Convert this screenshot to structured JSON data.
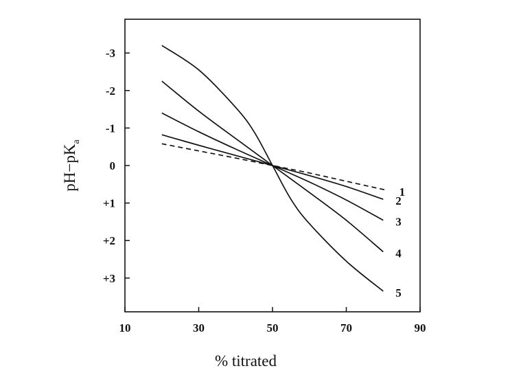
{
  "chart_data": {
    "type": "line",
    "title": "",
    "xlabel": "% titrated",
    "ylabel": "pH−pK",
    "ylabel_subscript": "a",
    "xlim": [
      10,
      90
    ],
    "ylim": [
      3.9,
      -3.9
    ],
    "y_axis_inverted": true,
    "grid": false,
    "x_ticks": [
      10,
      30,
      50,
      70,
      90
    ],
    "x_tick_labels": [
      "10",
      "30",
      "50",
      "70",
      "90"
    ],
    "y_ticks": [
      -3,
      -2,
      -1,
      0,
      1,
      2,
      3
    ],
    "y_tick_labels": [
      "-3",
      "-2",
      "-1",
      "0",
      "+1",
      "+2",
      "+3"
    ],
    "series": [
      {
        "name": "1",
        "style": "dashed",
        "x": [
          20,
          30,
          40,
          50,
          60,
          70,
          81
        ],
        "y": [
          -0.58,
          -0.39,
          -0.2,
          0,
          0.2,
          0.42,
          0.66
        ]
      },
      {
        "name": "2",
        "style": "solid",
        "x": [
          20,
          30,
          40,
          50,
          60,
          70,
          80
        ],
        "y": [
          -0.82,
          -0.54,
          -0.27,
          0,
          0.27,
          0.56,
          0.9
        ]
      },
      {
        "name": "3",
        "style": "solid",
        "x": [
          20,
          30,
          40,
          50,
          60,
          70,
          80
        ],
        "y": [
          -1.4,
          -0.9,
          -0.44,
          0,
          0.44,
          0.92,
          1.46
        ]
      },
      {
        "name": "4",
        "style": "solid",
        "x": [
          20,
          30,
          40,
          50,
          60,
          70,
          80
        ],
        "y": [
          -2.25,
          -1.45,
          -0.72,
          0,
          0.72,
          1.46,
          2.3
        ]
      },
      {
        "name": "5",
        "style": "solid",
        "x": [
          20,
          30,
          40,
          45,
          50,
          55,
          60,
          70,
          80
        ],
        "y": [
          -3.2,
          -2.55,
          -1.55,
          -0.9,
          0,
          0.9,
          1.55,
          2.55,
          3.35
        ]
      }
    ]
  }
}
